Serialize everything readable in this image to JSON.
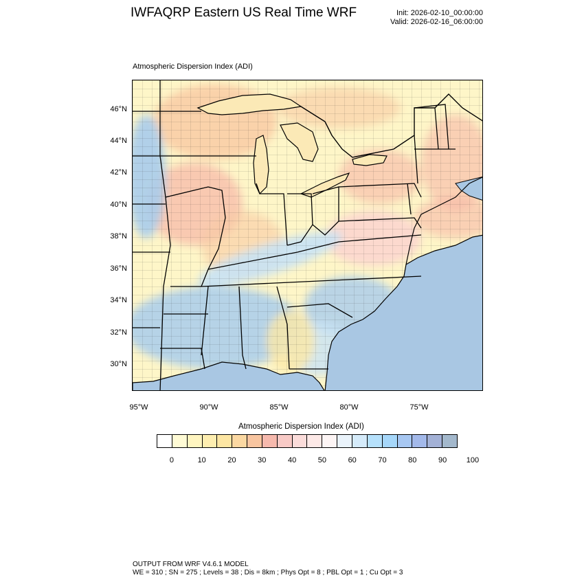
{
  "header": {
    "title": "IWFAQRP Eastern US Real Time WRF",
    "init": "Init: 2026-02-10_00:00:00",
    "valid": "Valid: 2026-02-16_06:00:00"
  },
  "map": {
    "subtitle": "Atmospheric Dispersion Index   (ADI)",
    "lat_labels": [
      "46°N",
      "44°N",
      "42°N",
      "40°N",
      "38°N",
      "36°N",
      "34°N",
      "32°N",
      "30°N"
    ],
    "lon_labels": [
      "95°W",
      "90°W",
      "85°W",
      "80°W",
      "75°W"
    ],
    "colors": {
      "land_base": "#fef6c8",
      "low_yellow": "#fde9a6",
      "orange": "#f9c9a3",
      "salmon": "#f6b7a7",
      "pink": "#fbd2cf",
      "light_blue": "#c8e2f5",
      "blue": "#a9ccec",
      "ocean": "#a9c7e3",
      "lake": "#fbe9b6"
    }
  },
  "colorbar": {
    "title": "Atmospheric Dispersion Index  (ADI)",
    "colors": [
      "#ffffff",
      "#fffbd5",
      "#fff5c0",
      "#feeeb0",
      "#fde6a3",
      "#fbd8a2",
      "#f8c5a0",
      "#f6b9ad",
      "#f8cac6",
      "#fbdcda",
      "#fde9e7",
      "#fdf5f5",
      "#eaf3fb",
      "#d5ebfa",
      "#b6e1fc",
      "#a6d7fa",
      "#a7c7f2",
      "#a3b9ea",
      "#a3b1d6",
      "#a3b8cc"
    ],
    "tick_labels": [
      "0",
      "10",
      "20",
      "30",
      "40",
      "50",
      "60",
      "70",
      "80",
      "90",
      "100"
    ]
  },
  "footer": {
    "line1": "OUTPUT FROM WRF V4.6.1 MODEL",
    "line2": "WE = 310 ; SN = 275 ; Levels = 38 ; Dis = 8km ; Phys Opt = 8 ; PBL Opt = 1 ; Cu Opt = 3"
  }
}
